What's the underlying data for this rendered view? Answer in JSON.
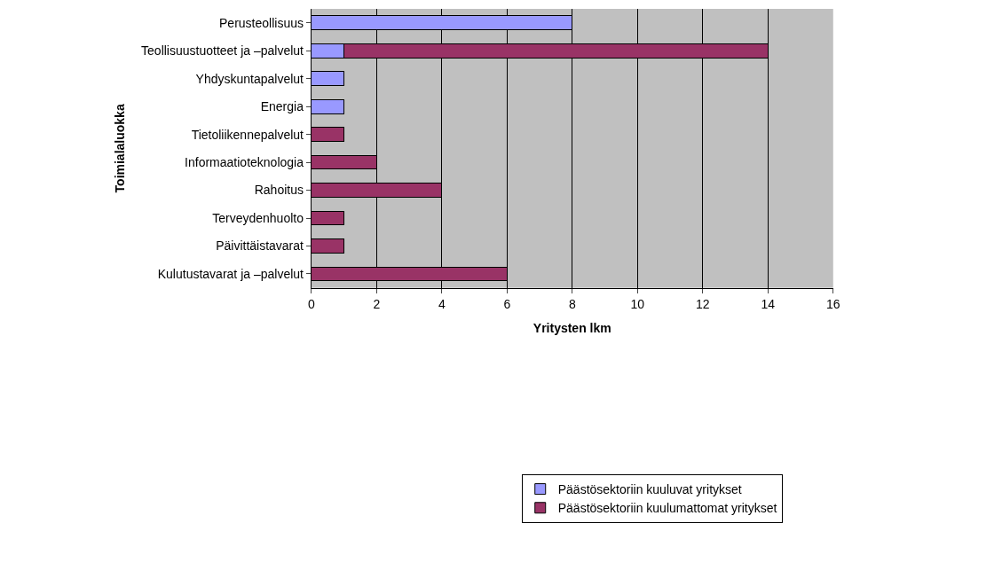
{
  "chart_data": {
    "type": "bar",
    "orientation": "horizontal",
    "stacked": true,
    "xlabel": "Yritysten lkm",
    "ylabel": "Toimialaluokka",
    "categories": [
      "Perusteollisuus",
      "Teollisuustuotteet ja –palvelut",
      "Yhdyskuntapalvelut",
      "Energia",
      "Tietoliikennepalvelut",
      "Informaatioteknologia",
      "Rahoitus",
      "Terveydenhuolto",
      "Päivittäistavarat",
      "Kulutustavarat ja –palvelut"
    ],
    "series": [
      {
        "name": "Päästösektoriin kuuluvat yritykset",
        "color": "#9999ff",
        "values": [
          8,
          1,
          1,
          1,
          null,
          null,
          null,
          null,
          null,
          null
        ]
      },
      {
        "name": "Päästösektoriin kuulumattomat yritykset",
        "color": "#993366",
        "values": [
          null,
          13,
          null,
          null,
          1,
          2,
          4,
          1,
          1,
          6
        ]
      }
    ],
    "xlim": [
      0,
      16
    ],
    "xticks": [
      0,
      2,
      4,
      6,
      8,
      10,
      12,
      14,
      16
    ],
    "grid": "x",
    "legend": "bottom right"
  }
}
